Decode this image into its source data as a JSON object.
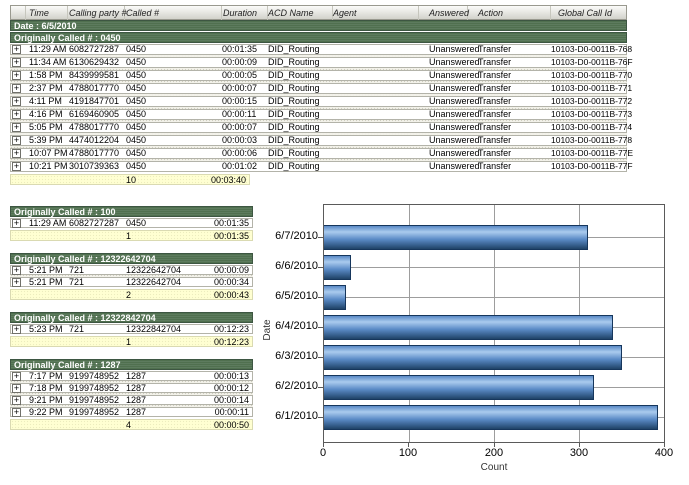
{
  "icons": {
    "expand": "+"
  },
  "colors": {
    "group_band_green": "#4c6950",
    "summary_yellow": "#ffffd2",
    "bar_light": "#aacbee",
    "bar_mid": "#5a8ac6",
    "bar_dark": "#1f4266",
    "bar_border": "#16365c"
  },
  "table": {
    "columns": [
      "Time",
      "Calling party #",
      "Called #",
      "Duration",
      "ACD Name",
      "Agent",
      "Answered",
      "Action",
      "Global Call Id"
    ],
    "date_band": "Date : 6/5/2010",
    "top_group": {
      "band": "Originally Called # : 0450",
      "rows": [
        [
          "11:29 AM",
          "6082727287",
          "0450",
          "00:01:35",
          "DID_Routing",
          "",
          "Unanswered",
          "Transfer",
          "10103-D0-0011B-768"
        ],
        [
          "11:34 AM",
          "6130629432",
          "0450",
          "00:00:09",
          "DID_Routing",
          "",
          "Unanswered",
          "Transfer",
          "10103-D0-0011B-76F"
        ],
        [
          "1:58 PM",
          "8439999581",
          "0450",
          "00:00:05",
          "DID_Routing",
          "",
          "Unanswered",
          "Transfer",
          "10103-D0-0011B-770"
        ],
        [
          "2:37 PM",
          "4788017770",
          "0450",
          "00:00:07",
          "DID_Routing",
          "",
          "Unanswered",
          "Transfer",
          "10103-D0-0011B-771"
        ],
        [
          "4:11 PM",
          "4191847701",
          "0450",
          "00:00:15",
          "DID_Routing",
          "",
          "Unanswered",
          "Transfer",
          "10103-D0-0011B-772"
        ],
        [
          "4:16 PM",
          "6169460905",
          "0450",
          "00:00:11",
          "DID_Routing",
          "",
          "Unanswered",
          "Transfer",
          "10103-D0-0011B-773"
        ],
        [
          "5:05 PM",
          "4788017770",
          "0450",
          "00:00:07",
          "DID_Routing",
          "",
          "Unanswered",
          "Transfer",
          "10103-D0-0011B-774"
        ],
        [
          "5:39 PM",
          "4474012204",
          "0450",
          "00:00:03",
          "DID_Routing",
          "",
          "Unanswered",
          "Transfer",
          "10103-D0-0011B-778"
        ],
        [
          "10:07 PM",
          "4788017770",
          "0450",
          "00:00:06",
          "DID_Routing",
          "",
          "Unanswered",
          "Transfer",
          "10103-D0-0011B-77E"
        ],
        [
          "10:21 PM",
          "3010739363",
          "0450",
          "00:01:02",
          "DID_Routing",
          "",
          "Unanswered",
          "Transfer",
          "10103-D0-0011B-77F"
        ]
      ],
      "summary": {
        "count": "10",
        "total": "00:03:40"
      }
    }
  },
  "subgroups": [
    {
      "band": "Originally Called # : 100",
      "rows": [
        [
          "11:29 AM",
          "6082727287",
          "0450",
          "00:01:35"
        ]
      ],
      "summary": {
        "count": "1",
        "total": "00:01:35"
      }
    },
    {
      "band": "Originally Called # : 12322642704",
      "rows": [
        [
          "5:21 PM",
          "721",
          "12322642704",
          "00:00:09"
        ],
        [
          "5:21 PM",
          "721",
          "12322642704",
          "00:00:34"
        ]
      ],
      "summary": {
        "count": "2",
        "total": "00:00:43"
      }
    },
    {
      "band": "Originally Called # : 12322842704",
      "rows": [
        [
          "5:23 PM",
          "721",
          "12322842704",
          "00:12:23"
        ]
      ],
      "summary": {
        "count": "1",
        "total": "00:12:23"
      }
    },
    {
      "band": "Originally Called # : 1287",
      "rows": [
        [
          "7:17 PM",
          "9199748952",
          "1287",
          "00:00:13"
        ],
        [
          "7:18 PM",
          "9199748952",
          "1287",
          "00:00:12"
        ],
        [
          "9:21 PM",
          "9199748952",
          "1287",
          "00:00:14"
        ],
        [
          "9:22 PM",
          "9199748952",
          "1287",
          "00:00:11"
        ]
      ],
      "summary": {
        "count": "4",
        "total": "00:00:50"
      }
    }
  ],
  "chart_data": {
    "type": "bar",
    "orientation": "horizontal",
    "title": "",
    "categories": [
      "6/7/2010",
      "6/6/2010",
      "6/5/2010",
      "6/4/2010",
      "6/3/2010",
      "6/2/2010",
      "6/1/2010"
    ],
    "values": [
      310,
      32,
      26,
      340,
      350,
      318,
      393
    ],
    "xlabel": "Count",
    "ylabel": "Date",
    "xlim": [
      0,
      400
    ],
    "xticks": [
      "0",
      "100",
      "200",
      "300",
      "400"
    ],
    "grid": true,
    "legend": false
  }
}
